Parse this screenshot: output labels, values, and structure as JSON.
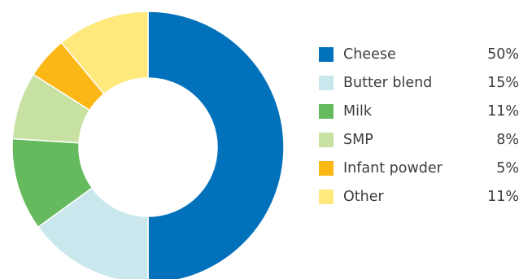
{
  "chart_data": {
    "type": "pie",
    "donut": true,
    "title": "",
    "legend_position": "right",
    "categories": [
      "Cheese",
      "Butter blend",
      "Milk",
      "SMP",
      "Infant powder",
      "Other"
    ],
    "values": [
      50,
      15,
      11,
      8,
      5,
      11
    ],
    "value_labels": [
      "50%",
      "15%",
      "11%",
      "8%",
      "5%",
      "11%"
    ],
    "colors": [
      "#0171bb",
      "#c9e7ec",
      "#65ba5d",
      "#c7e1a2",
      "#fbb716",
      "#ffe87c"
    ]
  }
}
